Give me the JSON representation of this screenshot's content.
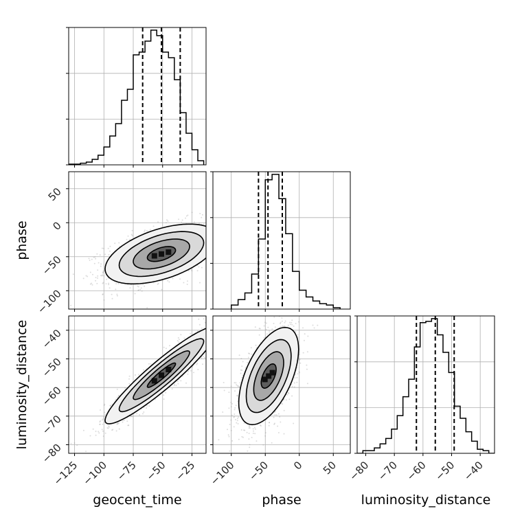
{
  "chart_data": {
    "type": "corner",
    "parameters": [
      {
        "name": "geocent_time",
        "ticks": [
          -125,
          -100,
          -75,
          -50,
          -25
        ],
        "range": [
          -130,
          -13
        ]
      },
      {
        "name": "phase",
        "ticks": [
          -100,
          -50,
          0,
          50
        ],
        "range": [
          -127,
          75
        ]
      },
      {
        "name": "luminosity_distance",
        "ticks": [
          -80,
          -70,
          -60,
          -50,
          -40
        ],
        "range": [
          -83,
          -35
        ]
      }
    ],
    "quantile_lines": {
      "geocent_time": [
        -67,
        -51,
        -35
      ],
      "phase": [
        -60,
        -46,
        -25
      ],
      "luminosity_distance": [
        -62.3,
        -55.7,
        -49.1
      ]
    },
    "histograms": {
      "geocent_time": {
        "edges": [
          -130,
          -125,
          -120,
          -115,
          -110,
          -105,
          -100,
          -95,
          -90,
          -85,
          -80,
          -75,
          -70,
          -65,
          -60,
          -55,
          -50,
          -45,
          -40,
          -35,
          -30,
          -25,
          -20,
          -15
        ],
        "counts": [
          0.005,
          0.005,
          0.012,
          0.02,
          0.04,
          0.07,
          0.13,
          0.21,
          0.3,
          0.47,
          0.55,
          0.8,
          0.82,
          0.9,
          0.98,
          0.94,
          0.82,
          0.78,
          0.62,
          0.38,
          0.23,
          0.11,
          0.03
        ]
      },
      "phase": {
        "edges": [
          -100,
          -90,
          -80,
          -70,
          -60,
          -50,
          -40,
          -30,
          -20,
          -10,
          0,
          10,
          20,
          30,
          40,
          50,
          60
        ],
        "counts": [
          0.03,
          0.07,
          0.12,
          0.26,
          0.52,
          0.96,
          1.0,
          0.82,
          0.56,
          0.28,
          0.14,
          0.09,
          0.06,
          0.04,
          0.03,
          0.01
        ]
      },
      "luminosity_distance": {
        "edges": [
          -83,
          -81,
          -79,
          -77,
          -75,
          -73,
          -71,
          -69,
          -67,
          -65,
          -63,
          -61,
          -59,
          -57,
          -55,
          -53,
          -51,
          -49,
          -47,
          -45,
          -43,
          -41,
          -39,
          -37,
          -35
        ],
        "counts": [
          0.0,
          0.02,
          0.02,
          0.04,
          0.07,
          0.11,
          0.18,
          0.28,
          0.42,
          0.55,
          0.79,
          0.97,
          0.98,
          1.0,
          0.88,
          0.75,
          0.6,
          0.35,
          0.26,
          0.16,
          0.09,
          0.03,
          0.02,
          0.0
        ]
      }
    },
    "pair_contours": [
      {
        "x": "geocent_time",
        "y": "phase",
        "center": [
          -51,
          -46
        ],
        "sigma": [
          24,
          22
        ],
        "rho": 0.5
      },
      {
        "x": "geocent_time",
        "y": "luminosity_distance",
        "center": [
          -51,
          -55.7
        ],
        "sigma": [
          24,
          8.5
        ],
        "rho": 0.93
      },
      {
        "x": "phase",
        "y": "luminosity_distance",
        "center": [
          -45,
          -56
        ],
        "sigma": [
          22,
          8.5
        ],
        "rho": 0.55
      }
    ],
    "contour_levels_sigma": [
      0.5,
      1,
      1.5,
      2
    ],
    "grid": true,
    "line_color": "#000000",
    "point_color": "#9a9a9a"
  }
}
